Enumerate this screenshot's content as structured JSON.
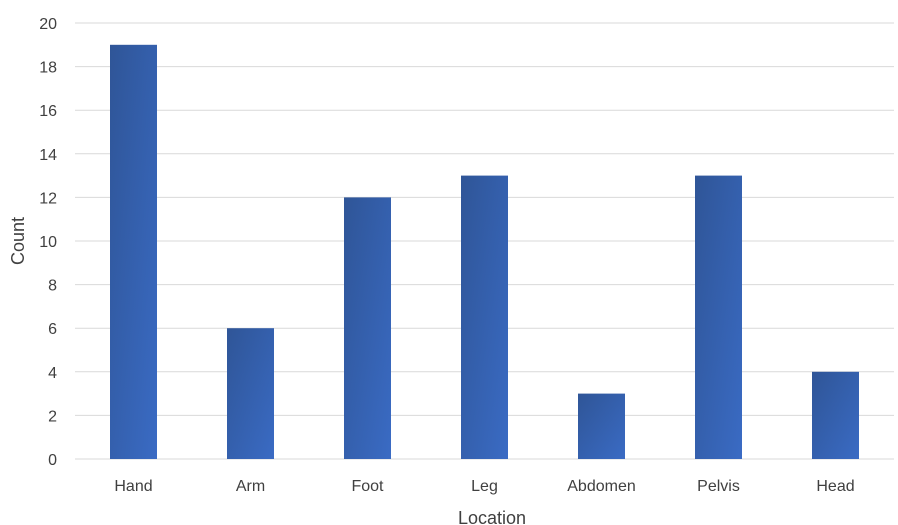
{
  "chart_data": {
    "type": "bar",
    "title": "",
    "xlabel": "Location",
    "ylabel": "Count",
    "categories": [
      "Hand",
      "Arm",
      "Foot",
      "Leg",
      "Abdomen",
      "Pelvis",
      "Head"
    ],
    "values": [
      19,
      6,
      12,
      13,
      3,
      13,
      4
    ],
    "ylim": [
      0,
      20
    ],
    "yticks": [
      "0",
      "2",
      "4",
      "6",
      "8",
      "10",
      "12",
      "14",
      "16",
      "18",
      "20"
    ],
    "grid": true,
    "legend": "none",
    "bar_color": "#2F5597",
    "bar_color_light": "#3A6BC4",
    "grid_color": "#D9D9D9"
  }
}
